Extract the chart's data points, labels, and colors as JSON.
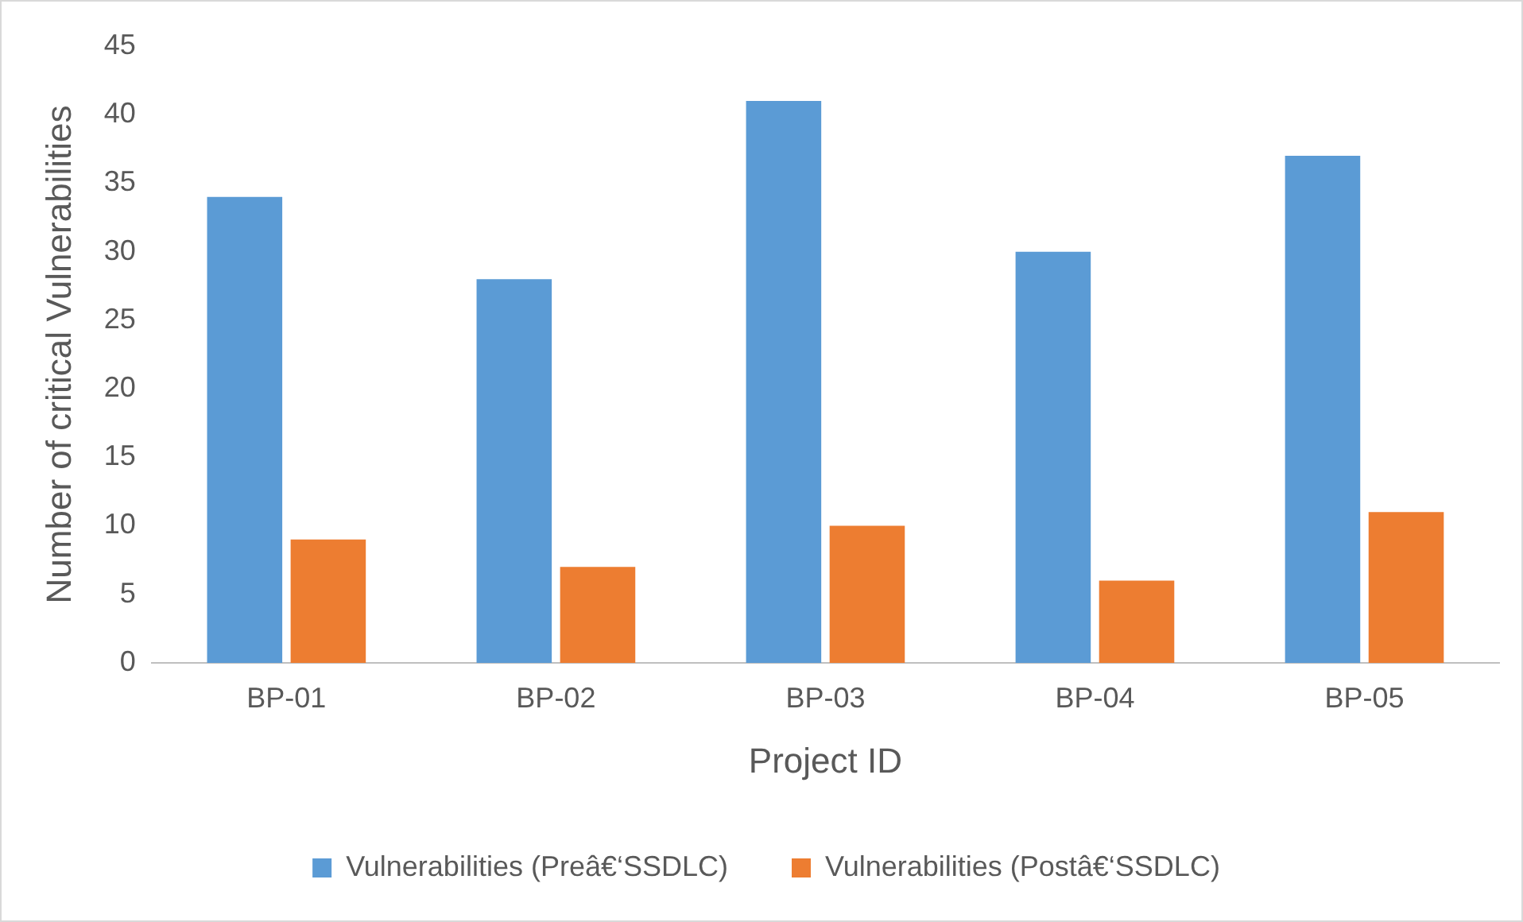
{
  "chart_data": {
    "type": "bar",
    "xlabel": "Project ID",
    "ylabel": "Number of critical Vulnerabilities",
    "categories": [
      "BP-01",
      "BP-02",
      "BP-03",
      "BP-04",
      "BP-05"
    ],
    "series": [
      {
        "name": "Vulnerabilities (Preâ€‘SSDLC)",
        "color": "#5b9bd5",
        "values": [
          34,
          28,
          41,
          30,
          37
        ]
      },
      {
        "name": "Vulnerabilities (Postâ€‘SSDLC)",
        "color": "#ed7d31",
        "values": [
          9,
          7,
          10,
          6,
          11
        ]
      }
    ],
    "ylim": [
      0,
      45
    ],
    "yticks": [
      0,
      5,
      10,
      15,
      20,
      25,
      30,
      35,
      40,
      45
    ],
    "grid": false,
    "legend": "bottom"
  }
}
